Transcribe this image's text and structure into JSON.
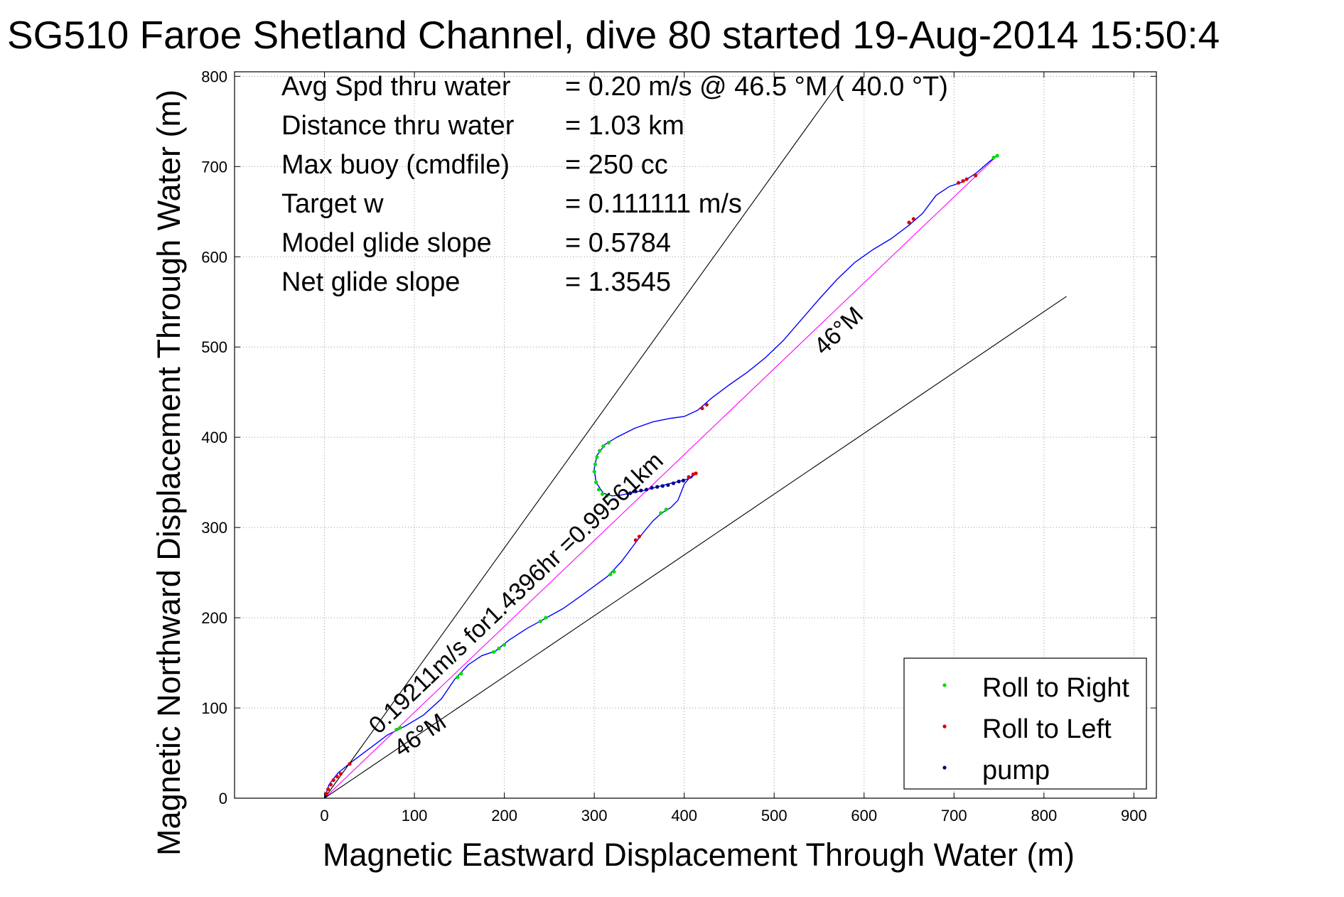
{
  "chart_data": {
    "type": "line",
    "title": "SG510 Faroe Shetland Channel, dive 80 started 19-Aug-2014 15:50:4",
    "xlabel": "Magnetic Eastward Displacement Through Water (m)",
    "ylabel": "Magnetic Northward Displacement Through Water (m)",
    "xlim": [
      -100,
      925
    ],
    "ylim": [
      0,
      805
    ],
    "grid": true,
    "x_ticks": [
      0,
      100,
      200,
      300,
      400,
      500,
      600,
      700,
      800,
      900
    ],
    "y_ticks": [
      0,
      100,
      200,
      300,
      400,
      500,
      600,
      700,
      800
    ],
    "x_tick_labels": [
      "0",
      "100",
      "200",
      "300",
      "400",
      "500",
      "600",
      "700",
      "800",
      "900"
    ],
    "y_tick_labels": [
      "0",
      "100",
      "200",
      "300",
      "400",
      "500",
      "600",
      "700",
      "800"
    ],
    "info_lines": [
      {
        "label": "Avg Spd thru water",
        "value": "=  0.20 m/s @  46.5 °M ( 40.0 °T)"
      },
      {
        "label": "Distance thru water",
        "value": "=  1.03 km"
      },
      {
        "label": "Max buoy (cmdfile)",
        "value": "= 250 cc"
      },
      {
        "label": "Target w",
        "value": "= 0.111111 m/s"
      },
      {
        "label": "Model glide slope",
        "value": "= 0.5784"
      },
      {
        "label": "Net glide slope",
        "value": "= 1.3545"
      }
    ],
    "series": [
      {
        "name": "",
        "kind": "track",
        "color": "#0000ff",
        "points": [
          [
            0,
            0
          ],
          [
            5,
            15
          ],
          [
            15,
            28
          ],
          [
            30,
            40
          ],
          [
            50,
            55
          ],
          [
            70,
            70
          ],
          [
            90,
            80
          ],
          [
            110,
            92
          ],
          [
            130,
            110
          ],
          [
            145,
            132
          ],
          [
            160,
            148
          ],
          [
            175,
            158
          ],
          [
            190,
            163
          ],
          [
            205,
            175
          ],
          [
            225,
            188
          ],
          [
            245,
            199
          ],
          [
            265,
            210
          ],
          [
            285,
            224
          ],
          [
            300,
            235
          ],
          [
            315,
            246
          ],
          [
            330,
            262
          ],
          [
            345,
            282
          ],
          [
            355,
            295
          ],
          [
            365,
            307
          ],
          [
            375,
            316
          ],
          [
            385,
            322
          ],
          [
            393,
            330
          ],
          [
            397,
            340
          ],
          [
            400,
            348
          ],
          [
            405,
            354
          ],
          [
            412,
            360
          ],
          [
            408,
            355
          ],
          [
            398,
            352
          ],
          [
            385,
            349
          ],
          [
            370,
            345
          ],
          [
            355,
            341
          ],
          [
            345,
            339
          ],
          [
            330,
            336
          ],
          [
            320,
            335
          ],
          [
            310,
            338
          ],
          [
            302,
            350
          ],
          [
            300,
            365
          ],
          [
            303,
            380
          ],
          [
            312,
            392
          ],
          [
            325,
            400
          ],
          [
            345,
            410
          ],
          [
            365,
            417
          ],
          [
            385,
            421
          ],
          [
            400,
            423
          ],
          [
            415,
            430
          ],
          [
            430,
            443
          ],
          [
            450,
            458
          ],
          [
            470,
            472
          ],
          [
            490,
            488
          ],
          [
            510,
            507
          ],
          [
            530,
            530
          ],
          [
            550,
            553
          ],
          [
            570,
            575
          ],
          [
            590,
            594
          ],
          [
            610,
            608
          ],
          [
            630,
            620
          ],
          [
            650,
            635
          ],
          [
            665,
            648
          ],
          [
            680,
            668
          ],
          [
            695,
            678
          ],
          [
            710,
            683
          ],
          [
            725,
            693
          ],
          [
            740,
            706
          ],
          [
            748,
            712
          ]
        ]
      },
      {
        "name": "",
        "kind": "rhumb-line",
        "color": "#ff00ff",
        "points": [
          [
            0,
            0
          ],
          [
            748,
            712
          ]
        ]
      },
      {
        "name": "",
        "kind": "reference-line",
        "color": "#000000",
        "points": [
          [
            0,
            0
          ],
          [
            570,
            790
          ]
        ]
      },
      {
        "name": "",
        "kind": "reference-line",
        "color": "#000000",
        "points": [
          [
            0,
            0
          ],
          [
            825,
            556
          ]
        ]
      },
      {
        "name": "Roll to Right",
        "kind": "markers",
        "color": "#00dd00",
        "points": [
          [
            80,
            76
          ],
          [
            84,
            78
          ],
          [
            148,
            134
          ],
          [
            152,
            138
          ],
          [
            188,
            162
          ],
          [
            194,
            166
          ],
          [
            200,
            170
          ],
          [
            240,
            196
          ],
          [
            246,
            200
          ],
          [
            318,
            248
          ],
          [
            322,
            251
          ],
          [
            374,
            316
          ],
          [
            380,
            320
          ],
          [
            300,
            362
          ],
          [
            301,
            370
          ],
          [
            303,
            378
          ],
          [
            306,
            385
          ],
          [
            310,
            390
          ],
          [
            316,
            394
          ],
          [
            302,
            350
          ],
          [
            305,
            342
          ],
          [
            309,
            337
          ],
          [
            314,
            335
          ],
          [
            744,
            710
          ],
          [
            748,
            712
          ]
        ]
      },
      {
        "name": "Roll to Left",
        "kind": "markers",
        "color": "#dd0000",
        "points": [
          [
            2,
            5
          ],
          [
            4,
            10
          ],
          [
            7,
            15
          ],
          [
            10,
            20
          ],
          [
            14,
            24
          ],
          [
            18,
            27
          ],
          [
            28,
            38
          ],
          [
            346,
            286
          ],
          [
            350,
            290
          ],
          [
            405,
            356
          ],
          [
            410,
            359
          ],
          [
            413,
            360
          ],
          [
            420,
            432
          ],
          [
            425,
            436
          ],
          [
            650,
            638
          ],
          [
            655,
            642
          ],
          [
            705,
            682
          ],
          [
            710,
            684
          ],
          [
            714,
            686
          ],
          [
            724,
            690
          ]
        ]
      },
      {
        "name": "pump",
        "kind": "markers",
        "color": "#000080",
        "points": [
          [
            340,
            338
          ],
          [
            346,
            340
          ],
          [
            352,
            341
          ],
          [
            358,
            342
          ],
          [
            364,
            344
          ],
          [
            370,
            345
          ],
          [
            376,
            346
          ],
          [
            382,
            347
          ],
          [
            388,
            349
          ],
          [
            394,
            351
          ],
          [
            399,
            352
          ]
        ]
      }
    ],
    "annotations": [
      {
        "text": "0.19211m/s for1.4396hr =0.99561km",
        "x": 60,
        "y": 70,
        "angle_deg": 43.6
      },
      {
        "text": "46°M",
        "x": 85,
        "y": 45,
        "angle_deg": 34.0
      },
      {
        "text": "46°M",
        "x": 555,
        "y": 490,
        "angle_deg": 43.6
      }
    ],
    "legend": {
      "position": "bottom-right",
      "entries": [
        "Roll to Right",
        "Roll to Left",
        "pump"
      ]
    }
  }
}
